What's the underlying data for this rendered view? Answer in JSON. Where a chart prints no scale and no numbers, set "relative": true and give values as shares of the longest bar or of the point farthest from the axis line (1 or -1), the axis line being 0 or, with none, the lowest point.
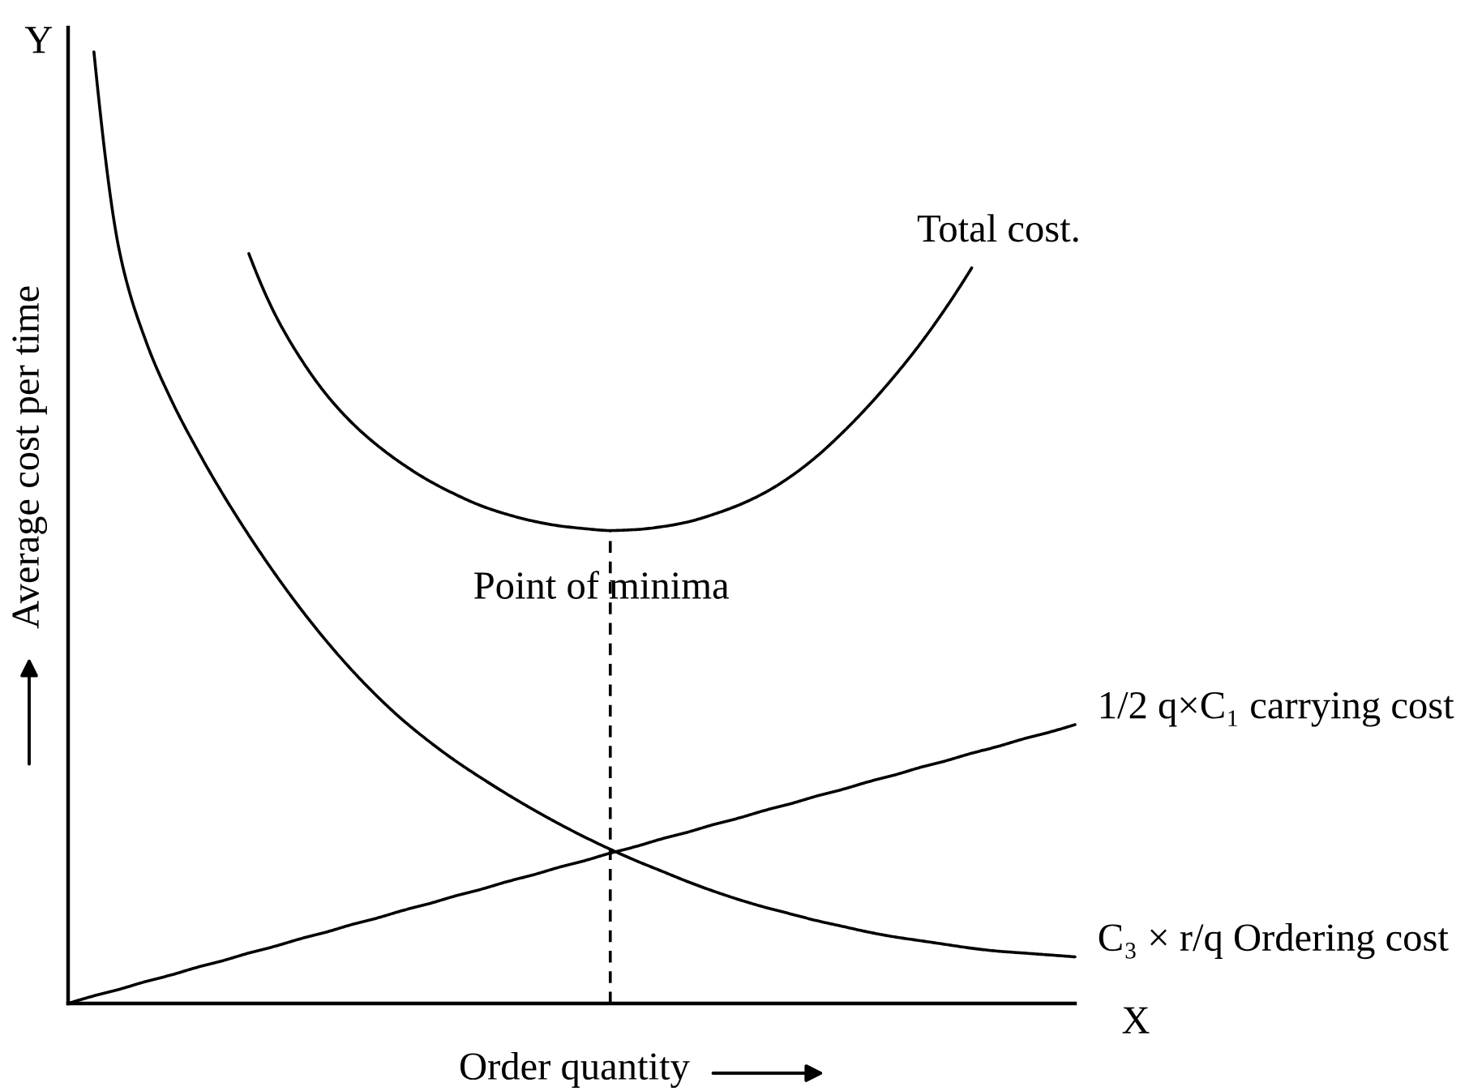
{
  "chart_data": {
    "type": "line",
    "relative": true,
    "xlabel": "Order quantity",
    "ylabel": "Average cost per time",
    "categories": [
      null,
      null,
      null,
      null,
      null,
      null,
      null,
      null,
      null,
      null,
      null,
      null,
      null,
      null,
      null,
      null,
      null,
      null,
      null,
      null,
      null,
      null,
      null,
      null,
      null,
      null,
      null,
      null,
      null,
      null,
      null,
      null,
      null,
      null,
      null,
      null,
      null,
      null,
      null,
      null
    ],
    "series": [
      {
        "name": "Total cost.",
        "color": "#000000",
        "values": [
          null,
          null,
          null,
          null,
          null,
          null,
          null,
          0.788,
          0.725,
          0.678,
          0.64,
          0.61,
          0.586,
          0.566,
          0.549,
          0.535,
          0.523,
          0.514,
          0.507,
          0.502,
          0.499,
          0.497,
          0.498,
          0.501,
          0.506,
          0.514,
          0.524,
          0.537,
          0.554,
          0.575,
          0.6,
          0.628,
          0.659,
          0.693,
          0.731,
          0.773,
          null,
          null,
          null,
          null
        ]
      },
      {
        "name": "1/2 q×C₁ carrying cost",
        "color": "#000000",
        "values": [
          0,
          0.008,
          0.015,
          0.023,
          0.03,
          0.038,
          0.045,
          0.053,
          0.06,
          0.068,
          0.075,
          0.083,
          0.09,
          0.098,
          0.105,
          0.113,
          0.12,
          0.128,
          0.135,
          0.143,
          0.15,
          0.158,
          0.165,
          0.173,
          0.18,
          0.188,
          0.195,
          0.203,
          0.21,
          0.218,
          0.225,
          0.233,
          0.24,
          0.248,
          0.255,
          0.263,
          0.27,
          0.278,
          0.285,
          0.293
        ]
      },
      {
        "name": "C₃ × r/q Ordering cost",
        "color": "#000000",
        "values": [
          null,
          1.0,
          0.789,
          0.697,
          0.634,
          0.582,
          0.535,
          0.492,
          0.452,
          0.415,
          0.381,
          0.35,
          0.322,
          0.297,
          0.275,
          0.255,
          0.237,
          0.22,
          0.204,
          0.189,
          0.175,
          0.162,
          0.15,
          0.139,
          0.128,
          0.118,
          0.109,
          0.101,
          0.094,
          0.087,
          0.081,
          0.075,
          0.07,
          0.066,
          0.062,
          0.058,
          0.055,
          0.053,
          0.051,
          0.049
        ]
      }
    ],
    "annotations": [
      "X",
      "Y",
      "Point of minima"
    ],
    "legend": false,
    "tick_labels": false,
    "line_style": "solid",
    "marker": "none"
  }
}
